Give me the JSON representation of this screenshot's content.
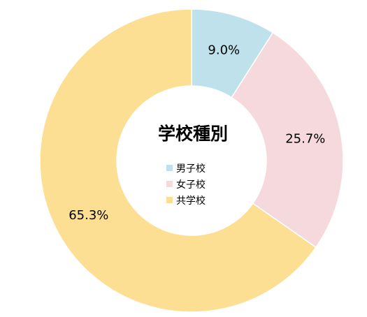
{
  "chart_data": {
    "type": "pie",
    "title": "学校種別",
    "categories": [
      "男子校",
      "女子校",
      "共学校"
    ],
    "values": [
      9.0,
      25.7,
      65.3
    ],
    "data_labels": [
      "9.0%",
      "25.7%",
      "65.3%"
    ],
    "colors": [
      "#BEE1EB",
      "#F5D9DD",
      "#FDDF93"
    ],
    "legend": {
      "placement": "center",
      "entries": [
        "男子校",
        "女子校",
        "共学校"
      ]
    },
    "donut": true,
    "grid": false
  }
}
